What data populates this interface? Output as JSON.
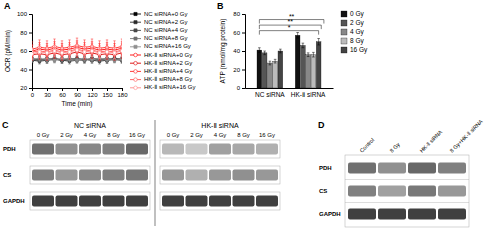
{
  "chart_data": [
    {
      "type": "line",
      "title": "A",
      "xlabel": "Time (min)",
      "ylabel": "OCR (pM/min)",
      "x": [
        0,
        15,
        30,
        45,
        60,
        75,
        90,
        105,
        120,
        135,
        150,
        165,
        180
      ],
      "xlim": [
        0,
        180
      ],
      "xticks": [
        0,
        30,
        60,
        90,
        120,
        150,
        180
      ],
      "ylim": [
        20,
        100
      ],
      "yticks": [
        20,
        40,
        60,
        80,
        100
      ],
      "legend": "right",
      "series": [
        {
          "name": "NC siRNA+0 Gy",
          "color": "#000000",
          "marker": "square",
          "values": [
            50,
            51,
            50,
            52,
            50,
            51,
            51,
            50,
            52,
            51,
            50,
            52,
            51
          ],
          "errors": [
            3,
            3,
            3,
            3,
            3,
            3,
            3,
            3,
            3,
            3,
            3,
            3,
            3
          ]
        },
        {
          "name": "NC siRNA+2 Gy",
          "color": "#2a2a2a",
          "marker": "square",
          "values": [
            50,
            49,
            50,
            51,
            50,
            49,
            50,
            51,
            50,
            49,
            50,
            51,
            50
          ],
          "errors": [
            3,
            3,
            3,
            3,
            3,
            3,
            3,
            3,
            3,
            3,
            3,
            3,
            3
          ]
        },
        {
          "name": "NC siRNA+4 Gy",
          "color": "#484848",
          "marker": "square",
          "values": [
            51,
            50,
            52,
            51,
            50,
            51,
            52,
            51,
            50,
            51,
            52,
            51,
            50
          ],
          "errors": [
            3,
            3,
            3,
            3,
            3,
            3,
            3,
            3,
            3,
            3,
            3,
            3,
            3
          ]
        },
        {
          "name": "NC siRNA+8 Gy",
          "color": "#707070",
          "marker": "square",
          "values": [
            52,
            51,
            50,
            52,
            51,
            52,
            51,
            50,
            52,
            51,
            50,
            51,
            52
          ],
          "errors": [
            3,
            3,
            3,
            3,
            3,
            3,
            3,
            3,
            3,
            3,
            3,
            3,
            3
          ]
        },
        {
          "name": "NC siRNA+16 Gy",
          "color": "#909090",
          "marker": "square",
          "values": [
            51,
            52,
            51,
            50,
            52,
            51,
            50,
            52,
            51,
            52,
            51,
            50,
            51
          ],
          "errors": [
            3,
            3,
            3,
            3,
            3,
            3,
            3,
            3,
            3,
            3,
            3,
            3,
            3
          ]
        },
        {
          "name": "HK-Ⅱ siRNA+0 Gy",
          "color": "#ff0000",
          "marker": "circle-open",
          "values": [
            60,
            62,
            61,
            63,
            61,
            62,
            64,
            62,
            63,
            61,
            62,
            61,
            63
          ],
          "errors": [
            7,
            7,
            7,
            7,
            7,
            7,
            7,
            7,
            7,
            7,
            7,
            7,
            7
          ]
        },
        {
          "name": "HK-Ⅱ siRNA+2 Gy",
          "color": "#dd0000",
          "marker": "circle-open",
          "values": [
            56,
            57,
            56,
            58,
            56,
            57,
            59,
            57,
            58,
            56,
            57,
            56,
            58
          ],
          "errors": [
            6,
            6,
            6,
            6,
            6,
            6,
            6,
            6,
            6,
            6,
            6,
            6,
            6
          ]
        },
        {
          "name": "HK-Ⅱ siRNA+4 Gy",
          "color": "#ff2222",
          "marker": "circle-open",
          "values": [
            62,
            64,
            63,
            65,
            63,
            64,
            66,
            64,
            65,
            63,
            64,
            63,
            65
          ],
          "errors": [
            8,
            8,
            8,
            8,
            8,
            8,
            8,
            8,
            8,
            8,
            8,
            8,
            8
          ]
        },
        {
          "name": "HK-Ⅱ siRNA+8 Gy",
          "color": "#ff5555",
          "marker": "circle-open",
          "values": [
            59,
            60,
            59,
            61,
            59,
            60,
            62,
            60,
            61,
            59,
            60,
            59,
            61
          ],
          "errors": [
            7,
            7,
            7,
            7,
            7,
            7,
            7,
            7,
            7,
            7,
            7,
            7,
            7
          ]
        },
        {
          "name": "HK-Ⅱ siRNA+16 Gy",
          "color": "#ff8888",
          "marker": "circle-open",
          "values": [
            57,
            59,
            58,
            60,
            58,
            59,
            61,
            59,
            60,
            58,
            59,
            58,
            60
          ],
          "errors": [
            6,
            6,
            6,
            6,
            6,
            6,
            6,
            6,
            6,
            6,
            6,
            6,
            6
          ]
        }
      ]
    },
    {
      "type": "bar",
      "title": "B",
      "ylabel": "ATP (nmol/mg protein)",
      "categories": [
        "NC siRNA",
        "HK-Ⅱ siRNA"
      ],
      "ylim": [
        0,
        80
      ],
      "yticks": [
        0,
        20,
        40,
        60,
        80
      ],
      "legend": "right",
      "series": [
        {
          "name": "0 Gy",
          "color": "#111111",
          "values": [
            41,
            57
          ],
          "errors": [
            2.5,
            3
          ]
        },
        {
          "name": "2 Gy",
          "color": "#555555",
          "values": [
            38,
            46
          ],
          "errors": [
            2,
            2.5
          ]
        },
        {
          "name": "4 Gy",
          "color": "#888888",
          "values": [
            27,
            36
          ],
          "errors": [
            2,
            2
          ]
        },
        {
          "name": "8 Gy",
          "color": "#bbbbbb",
          "values": [
            29,
            36
          ],
          "errors": [
            2,
            2.5
          ]
        },
        {
          "name": "16 Gy",
          "color": "#444444",
          "values": [
            40,
            50
          ],
          "errors": [
            2,
            3.5
          ]
        }
      ],
      "annotations": [
        {
          "text": "*",
          "y": 62
        },
        {
          "text": "**",
          "y": 68
        },
        {
          "text": "**",
          "y": 74
        }
      ]
    },
    {
      "type": "blot",
      "title": "C",
      "groups": [
        "NC siRNA",
        "HK-Ⅱ siRNA"
      ],
      "categories": [
        "0 Gy",
        "2 Gy",
        "4 Gy",
        "8 Gy",
        "16 Gy",
        "0 Gy",
        "2 Gy",
        "4 Gy",
        "8 Gy",
        "16 Gy"
      ],
      "series": [
        {
          "name": "PDH",
          "colors": [
            "#707070",
            "#909090",
            "#888888",
            "#808080",
            "#686868",
            "#b8b8b8",
            "#c8c8c8",
            "#a0a0a0",
            "#a8a8a8",
            "#b0b0b0"
          ]
        },
        {
          "name": "CS",
          "colors": [
            "#808080",
            "#989898",
            "#888888",
            "#808080",
            "#787878",
            "#989898",
            "#b0b0b0",
            "#989898",
            "#909090",
            "#989898"
          ]
        },
        {
          "name": "GAPDH",
          "colors": [
            "#404040",
            "#404040",
            "#404040",
            "#404040",
            "#404040",
            "#404040",
            "#404040",
            "#404040",
            "#404040",
            "#404040"
          ]
        }
      ]
    },
    {
      "type": "blot",
      "title": "D",
      "categories": [
        "Control",
        "8 Gy",
        "HK-Ⅱ siRNA",
        "8 Gy+HK-Ⅱ siRNA"
      ],
      "series": [
        {
          "name": "PDH",
          "colors": [
            "#707070",
            "#909090",
            "#686868",
            "#808080"
          ]
        },
        {
          "name": "CS",
          "colors": [
            "#808080",
            "#a0a0a0",
            "#787878",
            "#989898"
          ]
        },
        {
          "name": "GAPDH",
          "colors": [
            "#404040",
            "#404040",
            "#404040",
            "#404040"
          ]
        }
      ]
    }
  ]
}
